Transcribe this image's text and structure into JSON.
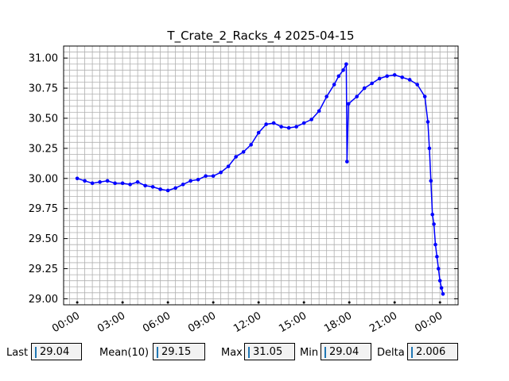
{
  "chart_data": {
    "type": "line",
    "title": "T_Crate_2_Racks_4 2025-04-15",
    "xlabel": "",
    "ylabel": "",
    "x_ticks": [
      "00:00",
      "03:00",
      "06:00",
      "09:00",
      "12:00",
      "15:00",
      "18:00",
      "21:00",
      "00:00"
    ],
    "y_ticks": [
      "29.00",
      "29.25",
      "29.50",
      "29.75",
      "30.00",
      "30.25",
      "30.50",
      "30.75",
      "31.00"
    ],
    "xlim_hours": [
      -0.9,
      25.2
    ],
    "ylim": [
      28.95,
      31.1
    ],
    "grid": true,
    "line_color": "#0000ff",
    "series": [
      {
        "points": [
          [
            0.0,
            30.0
          ],
          [
            0.5,
            29.98
          ],
          [
            1.0,
            29.96
          ],
          [
            1.5,
            29.97
          ],
          [
            2.0,
            29.98
          ],
          [
            2.5,
            29.96
          ],
          [
            3.0,
            29.96
          ],
          [
            3.5,
            29.95
          ],
          [
            4.0,
            29.97
          ],
          [
            4.5,
            29.94
          ],
          [
            5.0,
            29.93
          ],
          [
            5.5,
            29.91
          ],
          [
            6.0,
            29.9
          ],
          [
            6.5,
            29.92
          ],
          [
            7.0,
            29.95
          ],
          [
            7.5,
            29.98
          ],
          [
            8.0,
            29.99
          ],
          [
            8.5,
            30.02
          ],
          [
            9.0,
            30.02
          ],
          [
            9.5,
            30.05
          ],
          [
            10.0,
            30.1
          ],
          [
            10.5,
            30.18
          ],
          [
            11.0,
            30.22
          ],
          [
            11.5,
            30.28
          ],
          [
            12.0,
            30.38
          ],
          [
            12.5,
            30.45
          ],
          [
            13.0,
            30.46
          ],
          [
            13.5,
            30.43
          ],
          [
            14.0,
            30.42
          ],
          [
            14.5,
            30.43
          ],
          [
            15.0,
            30.46
          ],
          [
            15.5,
            30.49
          ],
          [
            16.0,
            30.56
          ],
          [
            16.5,
            30.68
          ],
          [
            17.0,
            30.78
          ],
          [
            17.3,
            30.85
          ],
          [
            17.6,
            30.9
          ],
          [
            17.8,
            30.95
          ],
          [
            17.85,
            30.14
          ],
          [
            17.95,
            30.62
          ],
          [
            18.5,
            30.68
          ],
          [
            19.0,
            30.75
          ],
          [
            19.5,
            30.79
          ],
          [
            20.0,
            30.83
          ],
          [
            20.5,
            30.85
          ],
          [
            21.0,
            30.86
          ],
          [
            21.5,
            30.84
          ],
          [
            22.0,
            30.82
          ],
          [
            22.5,
            30.78
          ],
          [
            23.0,
            30.68
          ],
          [
            23.2,
            30.47
          ],
          [
            23.3,
            30.25
          ],
          [
            23.4,
            29.98
          ],
          [
            23.5,
            29.7
          ],
          [
            23.6,
            29.62
          ],
          [
            23.7,
            29.45
          ],
          [
            23.8,
            29.35
          ],
          [
            23.9,
            29.25
          ],
          [
            24.0,
            29.15
          ],
          [
            24.1,
            29.09
          ],
          [
            24.2,
            29.04
          ]
        ]
      }
    ]
  },
  "stats": {
    "last_label": "Last",
    "last_value": "29.04",
    "mean_label": "Mean(10)",
    "mean_value": "29.15",
    "max_label": "Max",
    "max_value": "31.05",
    "min_label": "Min",
    "min_value": "29.04",
    "delta_label": "Delta",
    "delta_value": "2.006"
  }
}
